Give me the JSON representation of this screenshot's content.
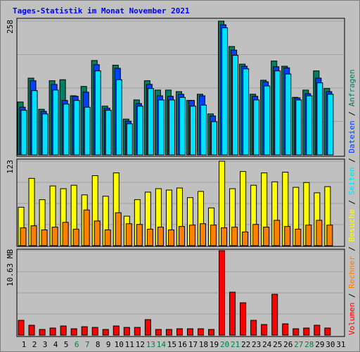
{
  "title": "Tages-Statistik im Monat November 2021",
  "legend_separator": " / ",
  "chart_data": [
    {
      "type": "bar",
      "ylim": [
        0,
        258
      ],
      "yticks": [
        258
      ],
      "grid": true,
      "series": [
        {
          "name": "Anfragen",
          "color": "#008060",
          "values": [
            102,
            148,
            88,
            143,
            145,
            114,
            132,
            182,
            94,
            173,
            69,
            106,
            143,
            125,
            125,
            122,
            105,
            117,
            79,
            258,
            209,
            175,
            117,
            144,
            181,
            171,
            111,
            125,
            162,
            128,
            null
          ]
        },
        {
          "name": "Dateien",
          "color": "#0040ff",
          "values": [
            92,
            143,
            84,
            136,
            105,
            113,
            121,
            174,
            90,
            167,
            65,
            99,
            136,
            114,
            113,
            117,
            105,
            114,
            75,
            251,
            202,
            171,
            113,
            141,
            170,
            168,
            110,
            118,
            148,
            122,
            null
          ]
        },
        {
          "name": "Seiten",
          "color": "#00e0ff",
          "values": [
            86,
            124,
            79,
            125,
            98,
            105,
            92,
            162,
            86,
            145,
            60,
            94,
            128,
            106,
            106,
            111,
            94,
            96,
            64,
            245,
            192,
            166,
            106,
            133,
            162,
            156,
            106,
            114,
            139,
            117,
            null
          ]
        }
      ]
    },
    {
      "type": "bar",
      "ylim": [
        0,
        123
      ],
      "yticks": [
        123
      ],
      "grid": true,
      "series": [
        {
          "name": "Besuche",
          "color": "#ffff00",
          "values": [
            56,
            98,
            67,
            87,
            83,
            88,
            74,
            102,
            72,
            106,
            43,
            67,
            78,
            83,
            81,
            84,
            70,
            79,
            55,
            123,
            83,
            108,
            88,
            106,
            93,
            107,
            85,
            92,
            77,
            86,
            null
          ]
        },
        {
          "name": "Rechner",
          "color": "#ff8000",
          "values": [
            26,
            29,
            23,
            27,
            34,
            24,
            52,
            36,
            23,
            48,
            32,
            31,
            24,
            27,
            23,
            28,
            30,
            32,
            30,
            26,
            27,
            20,
            31,
            27,
            37,
            28,
            24,
            30,
            37,
            30,
            null
          ]
        }
      ]
    },
    {
      "type": "bar",
      "ylim": [
        0,
        10.63
      ],
      "yticks": [
        {
          "value": 10.63,
          "label": "10.63 MB"
        }
      ],
      "grid": true,
      "categories": [
        "1",
        "2",
        "3",
        "4",
        "5",
        "6",
        "7",
        "8",
        "9",
        "10",
        "11",
        "12",
        "13",
        "14",
        "15",
        "16",
        "17",
        "18",
        "19",
        "20",
        "21",
        "22",
        "23",
        "24",
        "25",
        "26",
        "27",
        "28",
        "29",
        "30",
        "31"
      ],
      "category_colors": [
        "#000000",
        "#000000",
        "#000000",
        "#000000",
        "#000000",
        "#008040",
        "#008040",
        "#000000",
        "#000000",
        "#000000",
        "#000000",
        "#000000",
        "#008040",
        "#008040",
        "#000000",
        "#000000",
        "#000000",
        "#000000",
        "#000000",
        "#008040",
        "#008040",
        "#000000",
        "#000000",
        "#000000",
        "#000000",
        "#000000",
        "#008040",
        "#008040",
        "#000000",
        "#000000",
        "#000000"
      ],
      "series": [
        {
          "name": "Volumen",
          "color": "#ff0000",
          "values": [
            1.86,
            1.24,
            0.71,
            0.89,
            1.15,
            0.8,
            1.06,
            0.97,
            0.71,
            1.15,
            0.97,
            0.97,
            1.95,
            0.71,
            0.71,
            0.8,
            0.8,
            0.8,
            0.71,
            10.63,
            5.4,
            4.07,
            1.86,
            1.33,
            5.14,
            1.42,
            0.8,
            0.89,
            1.24,
            0.89,
            null
          ]
        }
      ]
    }
  ]
}
